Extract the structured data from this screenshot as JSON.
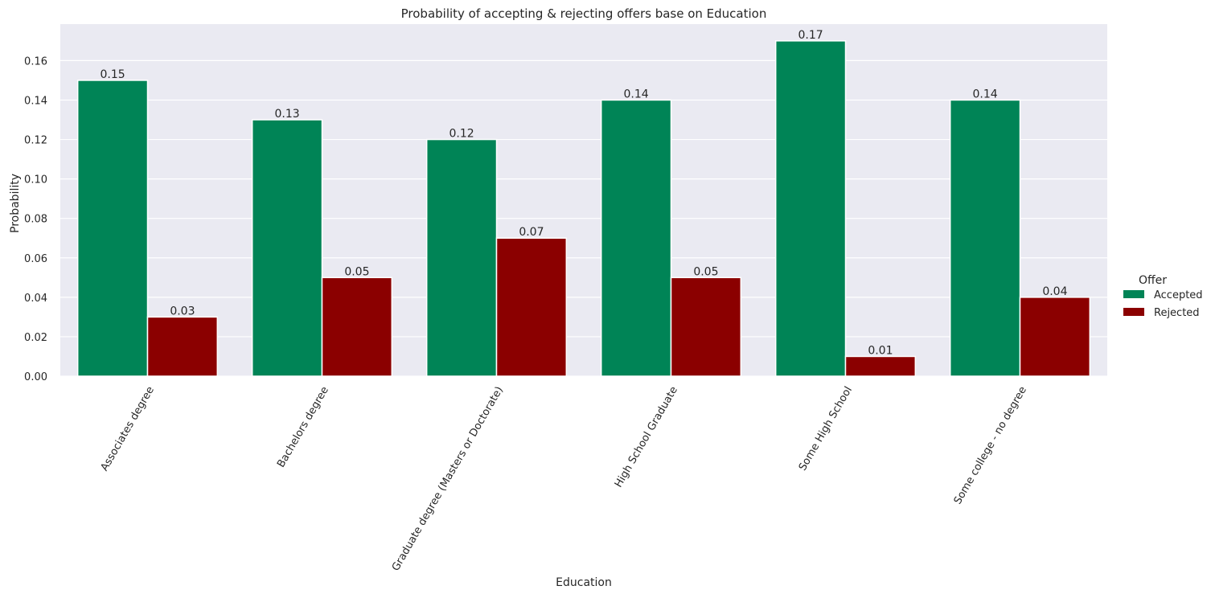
{
  "chart_data": {
    "type": "bar",
    "title": "Probability of accepting & rejecting offers base on Education",
    "xlabel": "Education",
    "ylabel": "Probability",
    "categories": [
      "Associates degree",
      "Bachelors degree",
      "Graduate degree (Masters or Doctorate)",
      "High School Graduate",
      "Some High School",
      "Some college - no degree"
    ],
    "series": [
      {
        "name": "Accepted",
        "color": "#008456",
        "values": [
          0.15,
          0.13,
          0.12,
          0.14,
          0.17,
          0.14
        ]
      },
      {
        "name": "Rejected",
        "color": "#8b0000",
        "values": [
          0.03,
          0.05,
          0.07,
          0.05,
          0.01,
          0.04
        ]
      }
    ],
    "data_labels": [
      [
        "0.15",
        "0.13",
        "0.12",
        "0.14",
        "0.17",
        "0.14"
      ],
      [
        "0.03",
        "0.05",
        "0.07",
        "0.05",
        "0.01",
        "0.04"
      ]
    ],
    "yticks": [
      0,
      0.02,
      0.04,
      0.06,
      0.08,
      0.1,
      0.12,
      0.14,
      0.16
    ],
    "ytick_labels": [
      "0.00",
      "0.02",
      "0.04",
      "0.06",
      "0.08",
      "0.10",
      "0.12",
      "0.14",
      "0.16"
    ],
    "ylim": [
      0,
      0.1785
    ],
    "legend": {
      "title": "Offer",
      "position": "right"
    },
    "grid": true,
    "background": "#eaeaf2"
  }
}
